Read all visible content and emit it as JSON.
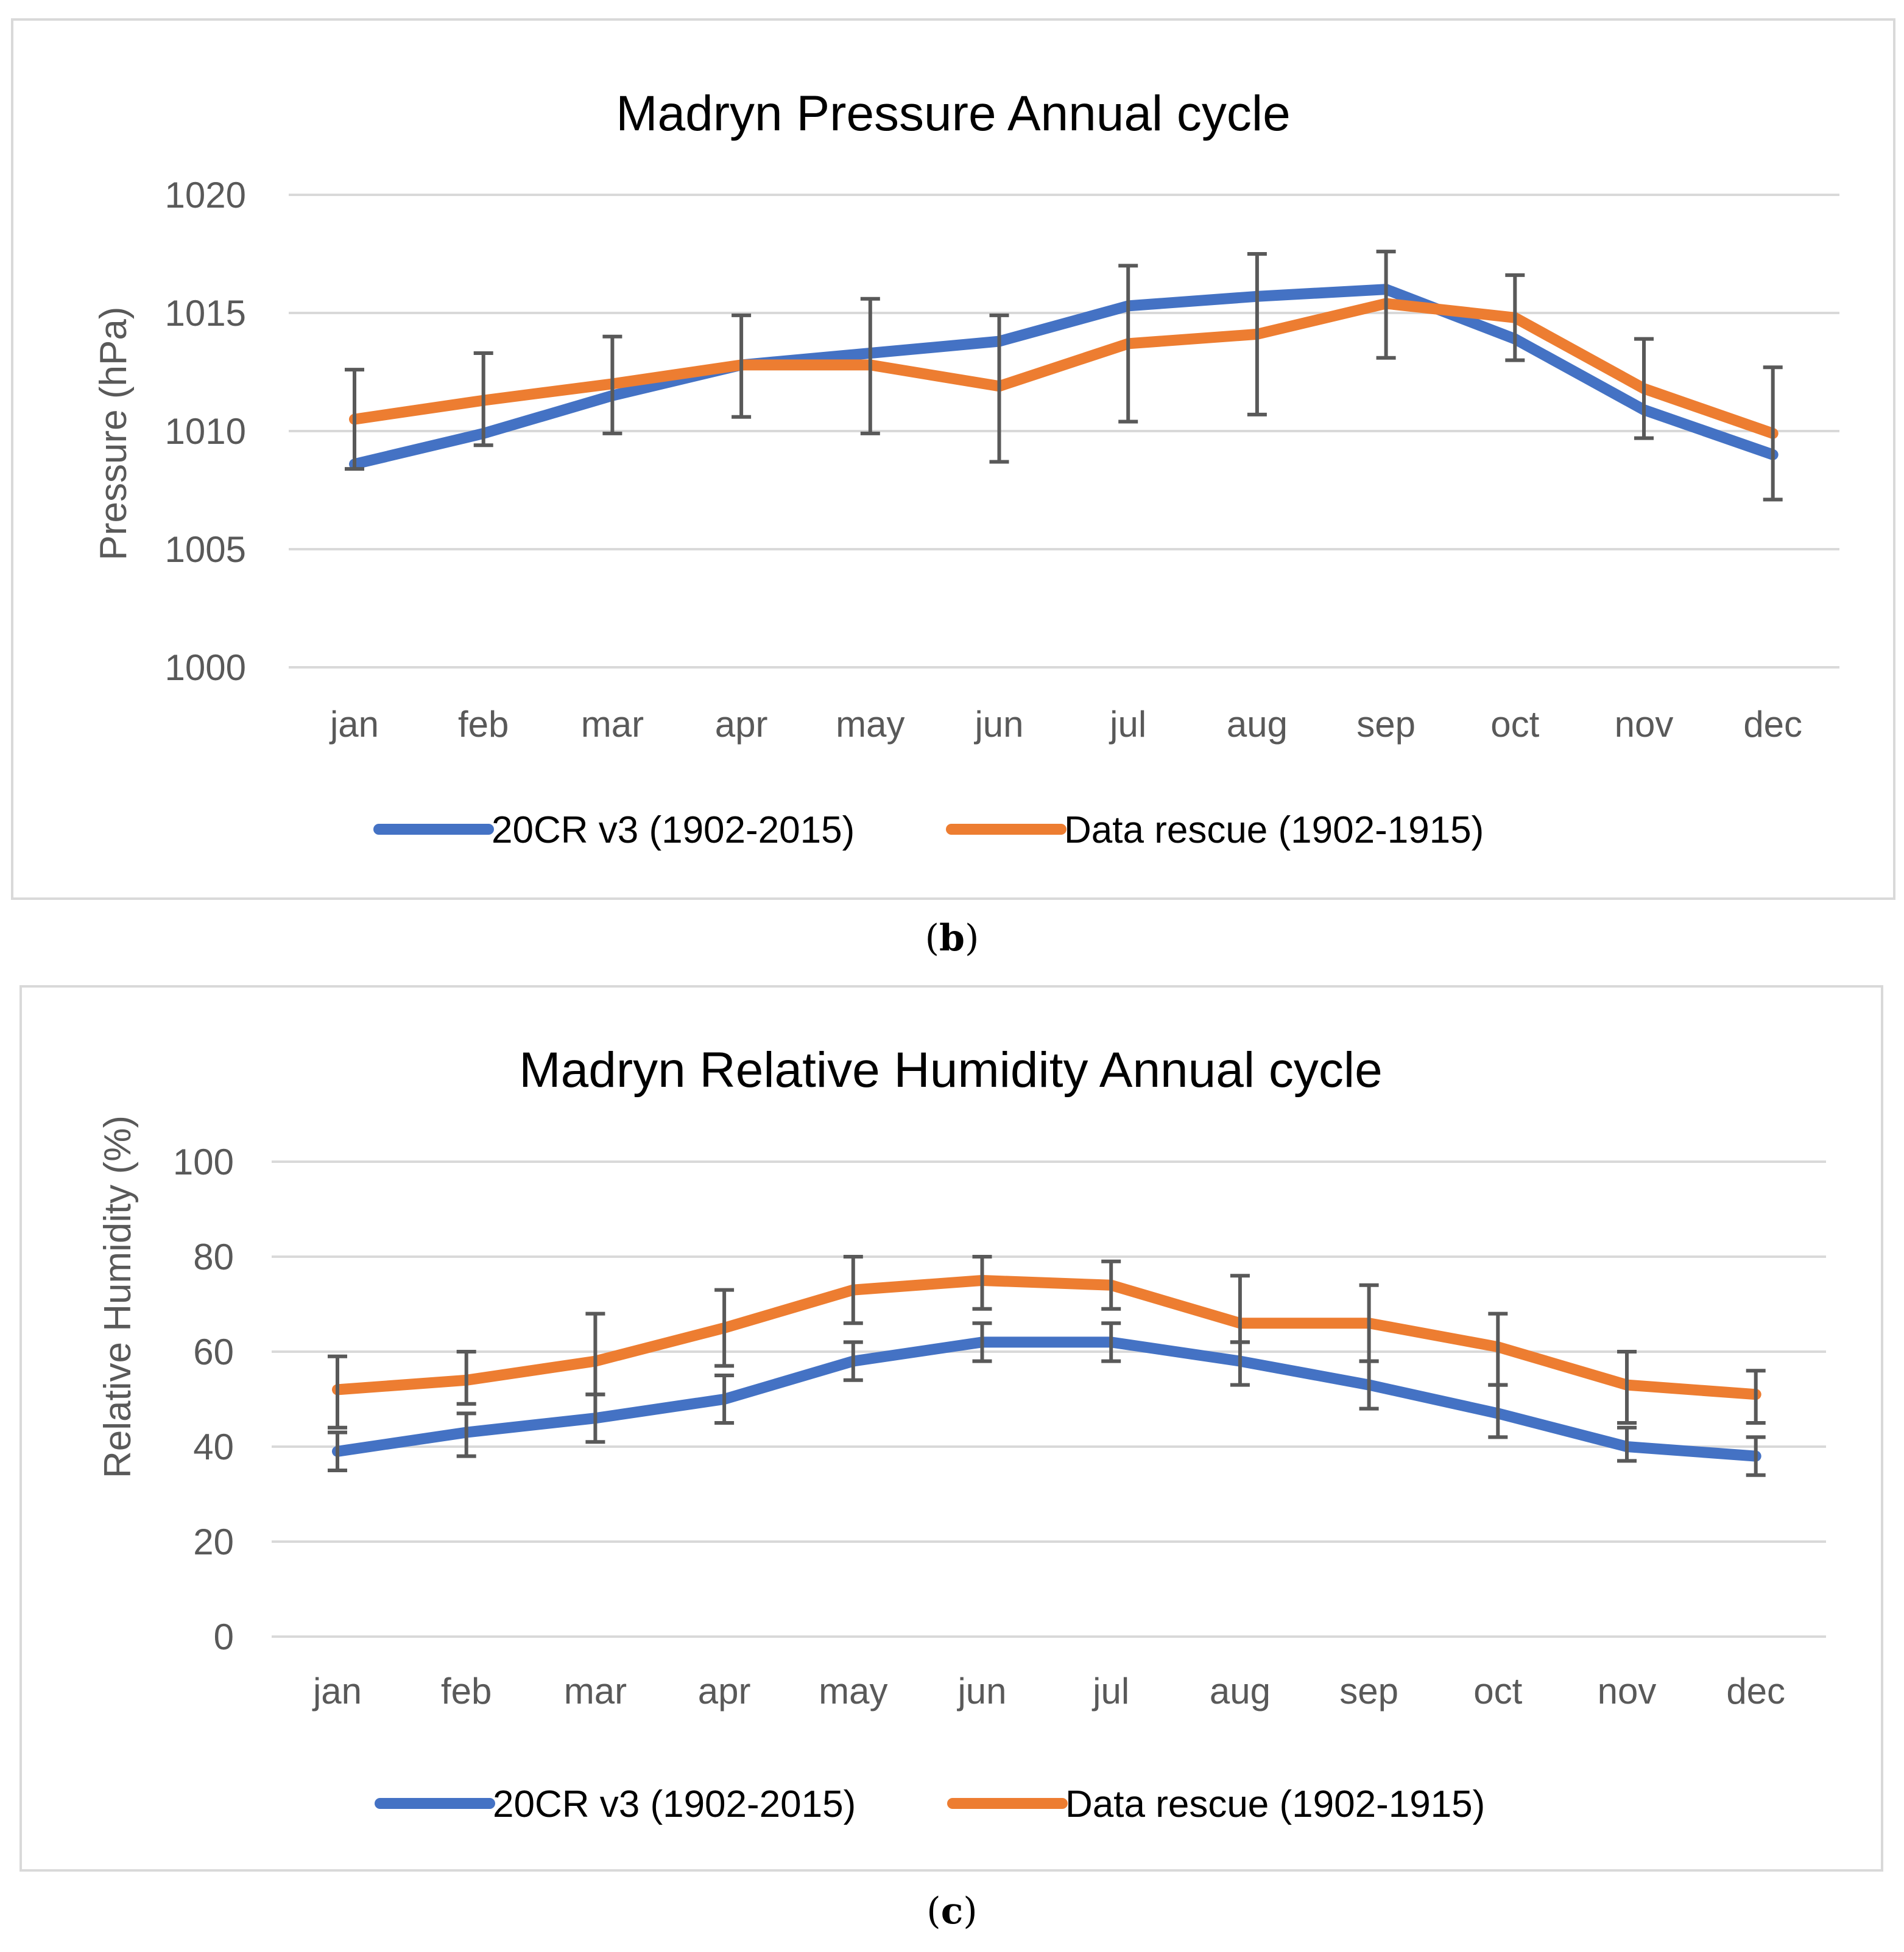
{
  "chart_data": [
    {
      "type": "line",
      "panel": "b",
      "title": "Madryn Pressure Annual cycle",
      "xlabel": "",
      "ylabel": "Pressure (hPa)",
      "ylim": [
        1000,
        1020
      ],
      "yticks": [
        1000,
        1005,
        1010,
        1015,
        1020
      ],
      "categories": [
        "jan",
        "feb",
        "mar",
        "apr",
        "may",
        "jun",
        "jul",
        "aug",
        "sep",
        "oct",
        "nov",
        "dec"
      ],
      "grid": true,
      "legend_position": "bottom",
      "series": [
        {
          "name": "20CR v3 (1902-2015)",
          "color": "#4472c4",
          "values": [
            1008.6,
            1009.9,
            1011.5,
            1012.8,
            1013.3,
            1013.8,
            1015.3,
            1015.7,
            1016.0,
            1013.9,
            1010.9,
            1009.0
          ]
        },
        {
          "name": "Data rescue (1902-1915)",
          "color": "#ed7d31",
          "values": [
            1010.5,
            1011.3,
            1012.0,
            1012.8,
            1012.8,
            1011.9,
            1013.7,
            1014.1,
            1015.4,
            1014.8,
            1011.8,
            1009.9
          ],
          "error_low": [
            1008.4,
            1009.4,
            1009.9,
            1010.6,
            1009.9,
            1008.7,
            1010.4,
            1010.7,
            1013.1,
            1013.0,
            1009.7,
            1007.1
          ],
          "error_high": [
            1012.6,
            1013.3,
            1014.0,
            1014.9,
            1015.6,
            1014.9,
            1017.0,
            1017.5,
            1017.6,
            1016.6,
            1013.9,
            1012.7
          ]
        }
      ],
      "error_bar_color": "#595959",
      "caption": "b"
    },
    {
      "type": "line",
      "panel": "c",
      "title": "Madryn Relative Humidity Annual cycle",
      "xlabel": "",
      "ylabel": "Relative Humidity (%)",
      "ylim": [
        0,
        100
      ],
      "yticks": [
        0,
        20,
        40,
        60,
        80,
        100
      ],
      "categories": [
        "jan",
        "feb",
        "mar",
        "apr",
        "may",
        "jun",
        "jul",
        "aug",
        "sep",
        "oct",
        "nov",
        "dec"
      ],
      "grid": true,
      "legend_position": "bottom",
      "series": [
        {
          "name": "20CR v3 (1902-2015)",
          "color": "#4472c4",
          "values": [
            39,
            43,
            46,
            50,
            58,
            62,
            62,
            58,
            53,
            47,
            40,
            38
          ],
          "error_low": [
            35,
            38,
            41,
            45,
            54,
            58,
            58,
            53,
            48,
            42,
            37,
            34
          ],
          "error_high": [
            43,
            47,
            51,
            55,
            62,
            66,
            66,
            62,
            58,
            53,
            44,
            42
          ]
        },
        {
          "name": "Data rescue (1902-1915)",
          "color": "#ed7d31",
          "values": [
            52,
            54,
            58,
            65,
            73,
            75,
            74,
            66,
            66,
            61,
            53,
            51
          ],
          "error_low": [
            44,
            49,
            51,
            57,
            66,
            69,
            69,
            62,
            58,
            53,
            45,
            45
          ],
          "error_high": [
            59,
            60,
            68,
            73,
            80,
            80,
            79,
            76,
            74,
            68,
            60,
            56
          ]
        }
      ],
      "error_bar_color": "#595959",
      "caption": "c"
    }
  ]
}
